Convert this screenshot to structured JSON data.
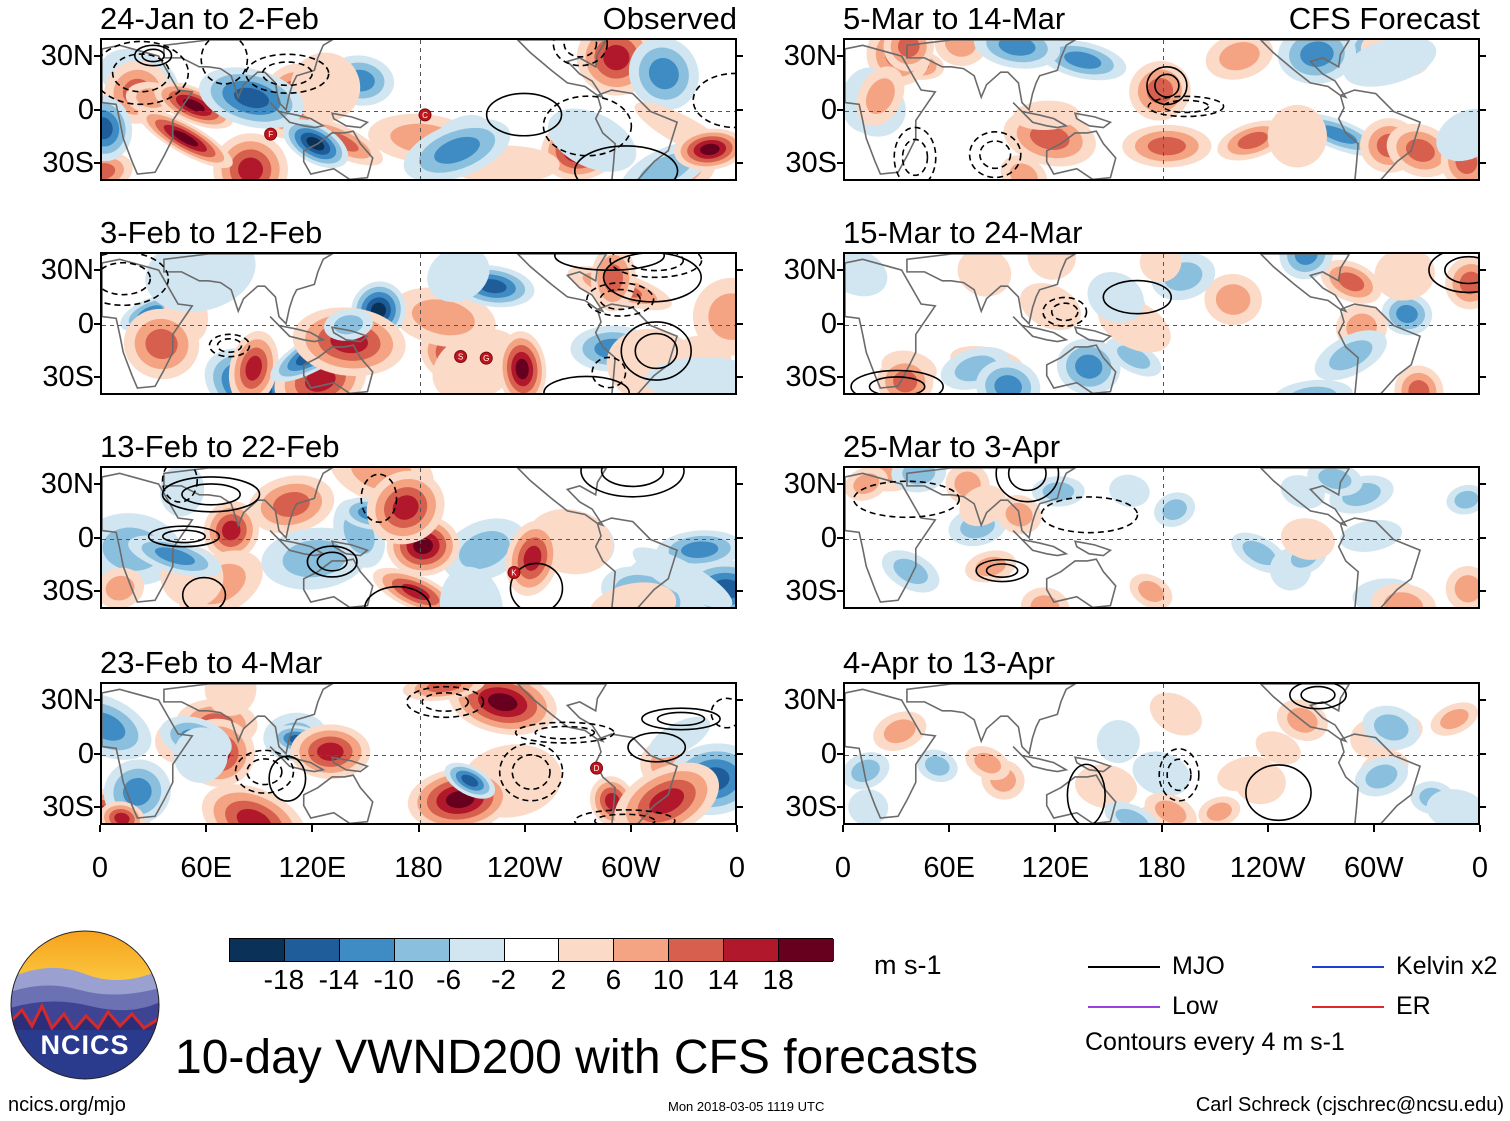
{
  "chart_data": {
    "type": "heatmap",
    "title": "10-day VWND200 with CFS forecasts",
    "variable": "VWND200",
    "units": "m s-1",
    "contour_note": "Contours every 4 m s-1",
    "colorbar": {
      "ticks": [
        "-18",
        "-14",
        "-10",
        "-6",
        "-2",
        "2",
        "6",
        "10",
        "14",
        "18"
      ],
      "colors": [
        "#0a3158",
        "#1f5d9a",
        "#3f8cc4",
        "#8ac0de",
        "#d2e6f1",
        "#ffffff",
        "#fbdac8",
        "#f4a483",
        "#d6604d",
        "#b2182b",
        "#67001f"
      ]
    },
    "x_ticks": [
      "0",
      "60E",
      "120E",
      "180",
      "120W",
      "60W",
      "0"
    ],
    "y_ticks": [
      "30N",
      "0",
      "30S"
    ],
    "observed": {
      "label": "Observed",
      "panels": [
        "24-Jan to 2-Feb",
        "3-Feb to 12-Feb",
        "13-Feb to 22-Feb",
        "23-Feb to 4-Mar"
      ]
    },
    "forecast": {
      "label": "CFS Forecast",
      "panels": [
        "5-Mar to 14-Mar",
        "15-Mar to 24-Mar",
        "25-Mar to 3-Apr",
        "4-Apr to 13-Apr"
      ]
    },
    "legend": [
      {
        "label": "MJO",
        "color": "#000000"
      },
      {
        "label": "Kelvin x2",
        "color": "#1f3cd8"
      },
      {
        "label": "Low",
        "color": "#9b3fe0"
      },
      {
        "label": "ER",
        "color": "#e02a2a"
      }
    ],
    "storm_markers": [
      {
        "panel": 0,
        "letter": "C"
      },
      {
        "panel": 0,
        "letter": "F"
      },
      {
        "panel": 1,
        "letter": "S"
      },
      {
        "panel": 1,
        "letter": "G"
      },
      {
        "panel": 2,
        "letter": "K"
      },
      {
        "panel": 3,
        "letter": "D"
      }
    ]
  },
  "footer": {
    "logo_text": "NCICS",
    "url": "ncics.org/mjo",
    "timestamp": "Mon 2018-03-05 1119 UTC",
    "author": "Carl Schreck (cjschrec@ncsu.edu)"
  }
}
